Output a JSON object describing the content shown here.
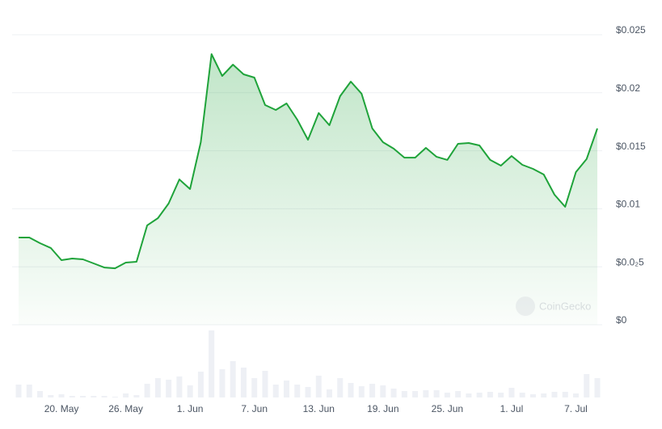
{
  "chart_data": {
    "type": "area",
    "categories": [
      null,
      null,
      null,
      null,
      "20. May",
      null,
      null,
      null,
      null,
      null,
      "26. May",
      null,
      null,
      null,
      null,
      null,
      "1. Jun",
      null,
      null,
      null,
      null,
      null,
      "7. Jun",
      null,
      null,
      null,
      null,
      null,
      "13. Jun",
      null,
      null,
      null,
      null,
      null,
      "19. Jun",
      null,
      null,
      null,
      null,
      null,
      "25. Jun",
      null,
      null,
      null,
      null,
      null,
      "1. Jul",
      null,
      null,
      null,
      null,
      null,
      "7. Jul",
      null,
      null
    ],
    "series": [
      {
        "name": "Price",
        "color": "#1fa33a",
        "values": [
          0.00752,
          0.00752,
          0.00703,
          0.00662,
          0.00557,
          0.00571,
          0.00564,
          0.00529,
          0.00494,
          0.00487,
          0.00536,
          0.00543,
          0.00857,
          0.00919,
          0.01045,
          0.01253,
          0.0117,
          0.01574,
          0.02333,
          0.02145,
          0.02242,
          0.02159,
          0.02131,
          0.01894,
          0.01852,
          0.01908,
          0.01769,
          0.01595,
          0.01825,
          0.0172,
          0.01971,
          0.02096,
          0.01992,
          0.01692,
          0.01574,
          0.01518,
          0.01441,
          0.01441,
          0.01525,
          0.01448,
          0.01421,
          0.0156,
          0.01567,
          0.01546,
          0.01421,
          0.01372,
          0.01455,
          0.01379,
          0.01344,
          0.01295,
          0.01121,
          0.01017,
          0.01316,
          0.01428,
          0.01692
        ]
      },
      {
        "name": "Volume",
        "color": "#eef0f5",
        "values": [
          16,
          16,
          8,
          3,
          4,
          2,
          2,
          2,
          2,
          1,
          5,
          3,
          17,
          24,
          22,
          26,
          15,
          32,
          83,
          35,
          45,
          37,
          24,
          33,
          16,
          21,
          16,
          13,
          27,
          10,
          24,
          18,
          14,
          17,
          15,
          11,
          8,
          8,
          9,
          9,
          6,
          8,
          5,
          6,
          7,
          6,
          12,
          6,
          4,
          5,
          7,
          7,
          5,
          29,
          24
        ]
      }
    ],
    "ylim": [
      0,
      0.025
    ],
    "yticks": [
      {
        "value": 0,
        "label": "$0"
      },
      {
        "value": 0.005,
        "label": "$0.0₂5"
      },
      {
        "value": 0.01,
        "label": "$0.01"
      },
      {
        "value": 0.015,
        "label": "$0.015"
      },
      {
        "value": 0.02,
        "label": "$0.02"
      },
      {
        "value": 0.025,
        "label": "$0.025"
      }
    ],
    "grid": true,
    "watermark": "CoinGecko"
  }
}
